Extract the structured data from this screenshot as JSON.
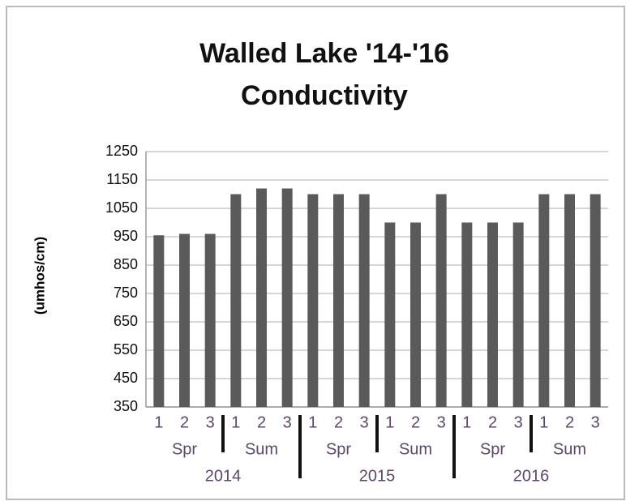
{
  "chart_data": {
    "type": "bar",
    "title": [
      "Walled Lake '14-'16",
      "Conductivity"
    ],
    "y_label": "(umhos/cm)",
    "categories": [
      "1",
      "2",
      "3",
      "1",
      "2",
      "3",
      "1",
      "2",
      "3",
      "1",
      "2",
      "3",
      "1",
      "2",
      "3",
      "1",
      "2",
      "3"
    ],
    "seasons": [
      "Spr",
      "Sum",
      "Spr",
      "Sum",
      "Spr",
      "Sum"
    ],
    "years": [
      "2014",
      "2015",
      "2016"
    ],
    "values": [
      955,
      960,
      960,
      1100,
      1120,
      1120,
      1100,
      1100,
      1100,
      1000,
      1000,
      1100,
      1000,
      1000,
      1000,
      1100,
      1100,
      1100
    ],
    "color": "#5a5a5a",
    "ylim": [
      350,
      1250
    ],
    "yticks": [
      350,
      450,
      550,
      650,
      750,
      850,
      950,
      1050,
      1150,
      1250
    ],
    "grid": true
  }
}
